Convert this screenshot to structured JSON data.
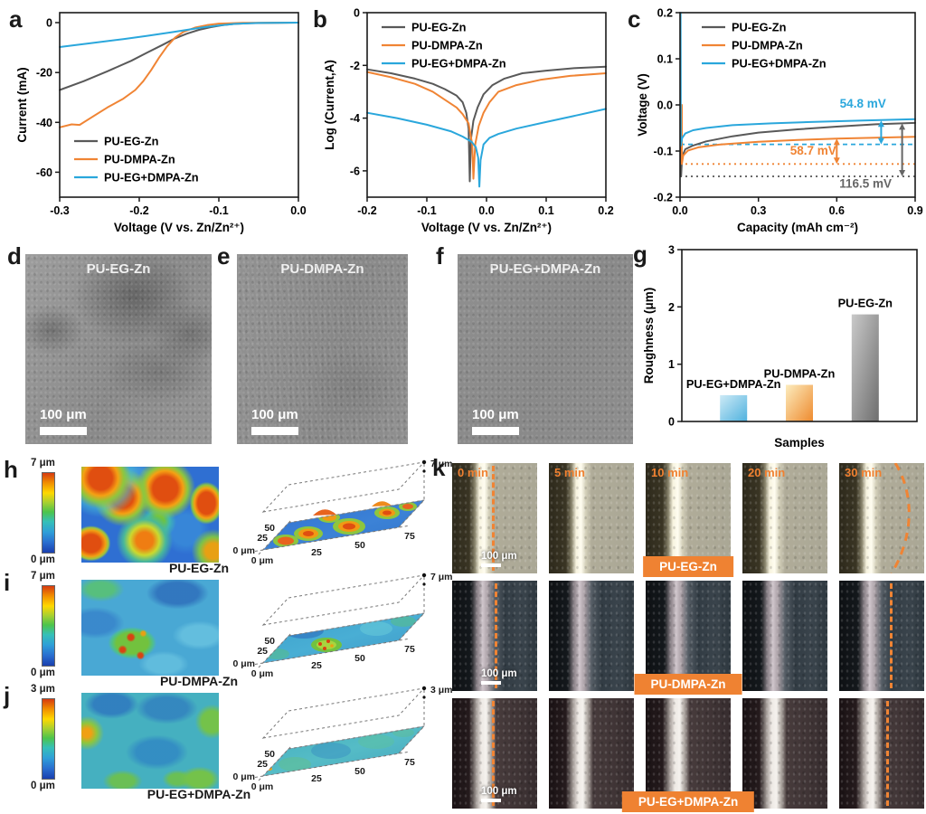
{
  "letters": {
    "a": "a",
    "b": "b",
    "c": "c",
    "d": "d",
    "e": "e",
    "f": "f",
    "g": "g",
    "h": "h",
    "i": "i",
    "j": "j",
    "k": "k"
  },
  "accent": {
    "orange": "#f08434",
    "blue": "#2aa7dc",
    "gray": "#595959"
  },
  "chart_data": [
    {
      "id": "a",
      "type": "line",
      "title": "",
      "xlabel": "Voltage  (V vs. Zn/Zn²⁺)",
      "ylabel": "Current (mA)",
      "xlim": [
        -0.3,
        0
      ],
      "ylim": [
        -70,
        4
      ],
      "grid": false,
      "legend_pos": "bl",
      "xticks": [
        {
          "v": -0.3,
          "l": "-0.3"
        },
        {
          "v": -0.2,
          "l": "-0.2"
        },
        {
          "v": -0.1,
          "l": "-0.1"
        },
        {
          "v": 0,
          "l": "0.0"
        }
      ],
      "yticks": [
        {
          "v": 0,
          "l": "0"
        },
        {
          "v": -20,
          "l": "-20"
        },
        {
          "v": -40,
          "l": "-40"
        },
        {
          "v": -60,
          "l": "-60"
        }
      ],
      "series": [
        {
          "name": "PU-EG-Zn",
          "color": "#595959",
          "points": [
            [
              -0.3,
              -27
            ],
            [
              -0.27,
              -23.5
            ],
            [
              -0.24,
              -19.5
            ],
            [
              -0.21,
              -15.3
            ],
            [
              -0.19,
              -12
            ],
            [
              -0.17,
              -8.8
            ],
            [
              -0.155,
              -6.3
            ],
            [
              -0.14,
              -4.4
            ],
            [
              -0.125,
              -2.9
            ],
            [
              -0.11,
              -1.8
            ],
            [
              -0.095,
              -1.0
            ],
            [
              -0.08,
              -0.5
            ],
            [
              -0.06,
              -0.2
            ],
            [
              -0.03,
              -0.05
            ],
            [
              0,
              0
            ]
          ]
        },
        {
          "name": "PU-DMPA-Zn",
          "color": "#f08434",
          "points": [
            [
              -0.3,
              -42
            ],
            [
              -0.285,
              -40.8
            ],
            [
              -0.275,
              -41
            ],
            [
              -0.26,
              -38
            ],
            [
              -0.24,
              -34
            ],
            [
              -0.22,
              -30.5
            ],
            [
              -0.205,
              -27
            ],
            [
              -0.195,
              -23.5
            ],
            [
              -0.185,
              -19
            ],
            [
              -0.175,
              -14
            ],
            [
              -0.165,
              -9.5
            ],
            [
              -0.155,
              -6
            ],
            [
              -0.145,
              -3.8
            ],
            [
              -0.13,
              -2
            ],
            [
              -0.115,
              -1
            ],
            [
              -0.1,
              -0.4
            ],
            [
              -0.07,
              -0.1
            ],
            [
              0,
              0
            ]
          ]
        },
        {
          "name": "PU-EG+DMPA-Zn",
          "color": "#2aa7dc",
          "points": [
            [
              -0.3,
              -9.8
            ],
            [
              -0.26,
              -8.2
            ],
            [
              -0.22,
              -6.6
            ],
            [
              -0.19,
              -5.3
            ],
            [
              -0.16,
              -3.9
            ],
            [
              -0.14,
              -2.9
            ],
            [
              -0.12,
              -1.9
            ],
            [
              -0.1,
              -1.1
            ],
            [
              -0.08,
              -0.5
            ],
            [
              -0.05,
              -0.15
            ],
            [
              0,
              0
            ]
          ]
        }
      ]
    },
    {
      "id": "b",
      "type": "line",
      "title": "",
      "xlabel": "Voltage  (V vs. Zn/Zn²⁺)",
      "ylabel": "Log (Current,A)",
      "xlim": [
        -0.2,
        0.2
      ],
      "ylim": [
        -7,
        0
      ],
      "grid": false,
      "legend_pos": "tl",
      "xticks": [
        {
          "v": -0.2,
          "l": "-0.2"
        },
        {
          "v": -0.1,
          "l": "-0.1"
        },
        {
          "v": 0,
          "l": "0.0"
        },
        {
          "v": 0.1,
          "l": "0.1"
        },
        {
          "v": 0.2,
          "l": "0.2"
        }
      ],
      "yticks": [
        {
          "v": 0,
          "l": "0"
        },
        {
          "v": -2,
          "l": "-2"
        },
        {
          "v": -4,
          "l": "-4"
        },
        {
          "v": -6,
          "l": "-6"
        }
      ],
      "series": [
        {
          "name": "PU-EG-Zn",
          "color": "#595959",
          "points": [
            [
              -0.2,
              -2.15
            ],
            [
              -0.16,
              -2.3
            ],
            [
              -0.12,
              -2.5
            ],
            [
              -0.09,
              -2.7
            ],
            [
              -0.07,
              -2.9
            ],
            [
              -0.05,
              -3.15
            ],
            [
              -0.04,
              -3.4
            ],
            [
              -0.034,
              -3.8
            ],
            [
              -0.03,
              -4.4
            ],
            [
              -0.028,
              -6.4
            ],
            [
              -0.026,
              -4.8
            ],
            [
              -0.022,
              -4.1
            ],
            [
              -0.015,
              -3.6
            ],
            [
              -0.005,
              -3.1
            ],
            [
              0.01,
              -2.75
            ],
            [
              0.03,
              -2.5
            ],
            [
              0.06,
              -2.3
            ],
            [
              0.1,
              -2.2
            ],
            [
              0.15,
              -2.1
            ],
            [
              0.2,
              -2.05
            ]
          ]
        },
        {
          "name": "PU-DMPA-Zn",
          "color": "#f08434",
          "points": [
            [
              -0.2,
              -2.25
            ],
            [
              -0.16,
              -2.45
            ],
            [
              -0.12,
              -2.7
            ],
            [
              -0.09,
              -3.0
            ],
            [
              -0.07,
              -3.3
            ],
            [
              -0.05,
              -3.6
            ],
            [
              -0.04,
              -3.85
            ],
            [
              -0.03,
              -4.2
            ],
            [
              -0.024,
              -5.0
            ],
            [
              -0.022,
              -6.3
            ],
            [
              -0.019,
              -5.0
            ],
            [
              -0.013,
              -4.3
            ],
            [
              -0.005,
              -3.8
            ],
            [
              0.005,
              -3.4
            ],
            [
              0.02,
              -3.0
            ],
            [
              0.05,
              -2.75
            ],
            [
              0.09,
              -2.55
            ],
            [
              0.14,
              -2.4
            ],
            [
              0.2,
              -2.3
            ]
          ]
        },
        {
          "name": "PU-EG+DMPA-Zn",
          "color": "#2aa7dc",
          "points": [
            [
              -0.2,
              -3.8
            ],
            [
              -0.15,
              -4.0
            ],
            [
              -0.1,
              -4.25
            ],
            [
              -0.06,
              -4.5
            ],
            [
              -0.04,
              -4.7
            ],
            [
              -0.025,
              -4.9
            ],
            [
              -0.018,
              -5.1
            ],
            [
              -0.014,
              -5.5
            ],
            [
              -0.012,
              -6.6
            ],
            [
              -0.01,
              -5.6
            ],
            [
              -0.005,
              -5.0
            ],
            [
              0.005,
              -4.75
            ],
            [
              0.02,
              -4.6
            ],
            [
              0.05,
              -4.4
            ],
            [
              0.1,
              -4.15
            ],
            [
              0.15,
              -3.9
            ],
            [
              0.2,
              -3.65
            ]
          ]
        }
      ]
    },
    {
      "id": "c",
      "type": "line",
      "title": "",
      "xlabel": "Capacity (mAh cm⁻²)",
      "ylabel": "Voltage (V)",
      "xlim": [
        0,
        0.9
      ],
      "ylim": [
        -0.2,
        0.2
      ],
      "grid": false,
      "legend_pos": "tl",
      "legend_dx": 24,
      "xticks": [
        {
          "v": 0,
          "l": "0.0"
        },
        {
          "v": 0.3,
          "l": "0.3"
        },
        {
          "v": 0.6,
          "l": "0.6"
        },
        {
          "v": 0.9,
          "l": "0.9"
        }
      ],
      "yticks": [
        {
          "v": 0.2,
          "l": "0.2"
        },
        {
          "v": 0.1,
          "l": "0.1"
        },
        {
          "v": 0,
          "l": "0.0"
        },
        {
          "v": -0.1,
          "l": "-0.1"
        },
        {
          "v": -0.2,
          "l": "-0.2"
        }
      ],
      "hlines": [
        {
          "y": -0.0855,
          "color": "#2aa7dc",
          "dash": "5,4"
        },
        {
          "y": -0.128,
          "color": "#f08434",
          "dash": "2,4"
        },
        {
          "y": -0.155,
          "color": "#555555",
          "dash": "2,4"
        }
      ],
      "arrows": [
        {
          "x": 0.77,
          "y1": -0.034,
          "y2": -0.0855,
          "color": "#2aa7dc"
        },
        {
          "x": 0.6,
          "y1": -0.073,
          "y2": -0.128,
          "color": "#f08434"
        },
        {
          "x": 0.85,
          "y1": -0.04,
          "y2": -0.155,
          "color": "#666666"
        }
      ],
      "labels": [
        {
          "t": "54.8 mV",
          "x": 0.7,
          "y": -0.006,
          "color": "#2aa7dc"
        },
        {
          "t": "58.7 mV",
          "x": 0.51,
          "y": -0.108,
          "color": "#f08434"
        },
        {
          "t": "116.5 mV",
          "x": 0.71,
          "y": -0.179,
          "color": "#666666"
        }
      ],
      "series": [
        {
          "name": "PU-EG-Zn",
          "color": "#595959",
          "points": [
            [
              0.004,
              0.0
            ],
            [
              0.004,
              -0.155
            ],
            [
              0.008,
              -0.112
            ],
            [
              0.02,
              -0.096
            ],
            [
              0.05,
              -0.088
            ],
            [
              0.1,
              -0.079
            ],
            [
              0.2,
              -0.068
            ],
            [
              0.3,
              -0.06
            ],
            [
              0.45,
              -0.053
            ],
            [
              0.6,
              -0.047
            ],
            [
              0.75,
              -0.042
            ],
            [
              0.9,
              -0.039
            ]
          ]
        },
        {
          "name": "PU-DMPA-Zn",
          "color": "#f08434",
          "points": [
            [
              0.007,
              0.0
            ],
            [
              0.007,
              -0.128
            ],
            [
              0.012,
              -0.11
            ],
            [
              0.03,
              -0.099
            ],
            [
              0.07,
              -0.092
            ],
            [
              0.15,
              -0.086
            ],
            [
              0.3,
              -0.08
            ],
            [
              0.45,
              -0.076
            ],
            [
              0.6,
              -0.073
            ],
            [
              0.75,
              -0.071
            ],
            [
              0.9,
              -0.069
            ]
          ]
        },
        {
          "name": "PU-EG+DMPA-Zn",
          "color": "#2aa7dc",
          "points": [
            [
              0.002,
              0.2
            ],
            [
              0.003,
              -0.088
            ],
            [
              0.008,
              -0.072
            ],
            [
              0.02,
              -0.062
            ],
            [
              0.05,
              -0.055
            ],
            [
              0.1,
              -0.05
            ],
            [
              0.2,
              -0.044
            ],
            [
              0.35,
              -0.04
            ],
            [
              0.5,
              -0.037
            ],
            [
              0.7,
              -0.034
            ],
            [
              0.9,
              -0.031
            ]
          ]
        }
      ]
    },
    {
      "id": "g",
      "type": "bar",
      "title": "",
      "xlabel": "Samples",
      "ylabel": "Roughness (μm)",
      "ylim": [
        0,
        3
      ],
      "yticks": [
        {
          "v": 0,
          "l": "0"
        },
        {
          "v": 1,
          "l": "1"
        },
        {
          "v": 2,
          "l": "2"
        },
        {
          "v": 3,
          "l": "3"
        }
      ],
      "categories": [
        "PU-EG+DMPA-Zn",
        "PU-DMPA-Zn",
        "PU-EG-Zn"
      ],
      "values": [
        0.46,
        0.64,
        1.87
      ],
      "bars": [
        {
          "name": "PU-EG+DMPA-Zn",
          "value": 0.46,
          "grad": [
            "#cdeaf6",
            "#4fb1de"
          ]
        },
        {
          "name": "PU-DMPA-Zn",
          "value": 0.64,
          "grad": [
            "#fcecbe",
            "#ee8a2e"
          ]
        },
        {
          "name": "PU-EG-Zn",
          "value": 1.87,
          "grad": [
            "#cicig",
            "#6e6e6e"
          ]
        }
      ]
    }
  ],
  "sem": [
    {
      "label": "PU-EG-Zn",
      "scale": "100 μm"
    },
    {
      "label": "PU-DMPA-Zn",
      "scale": "100 μm"
    },
    {
      "label": "PU-EG+DMPA-Zn",
      "scale": "100 μm"
    }
  ],
  "surface": {
    "axis": {
      "x0": "0 μm",
      "x1": "25",
      "x2": "50",
      "x3": "75",
      "y0": "0 μm",
      "y1": "25",
      "y2": "50"
    },
    "rows": [
      {
        "id": "h",
        "zmax": "7 μm",
        "zmin": "0 μm",
        "label": "PU-EG-Zn"
      },
      {
        "id": "i",
        "zmax": "7 μm",
        "zmin": "0 μm",
        "label": "PU-DMPA-Zn"
      },
      {
        "id": "j",
        "zmax": "3 μm",
        "zmin": "0 μm",
        "label": "PU-EG+DMPA-Zn"
      }
    ]
  },
  "k": {
    "times": [
      "0 min",
      "5 min",
      "10 min",
      "20 min",
      "30 min"
    ],
    "rows": [
      {
        "label": "PU-EG-Zn",
        "scale": "100 μm"
      },
      {
        "label": "PU-DMPA-Zn",
        "scale": "100 μm"
      },
      {
        "label": "PU-EG+DMPA-Zn",
        "scale": "100 μm"
      }
    ]
  }
}
